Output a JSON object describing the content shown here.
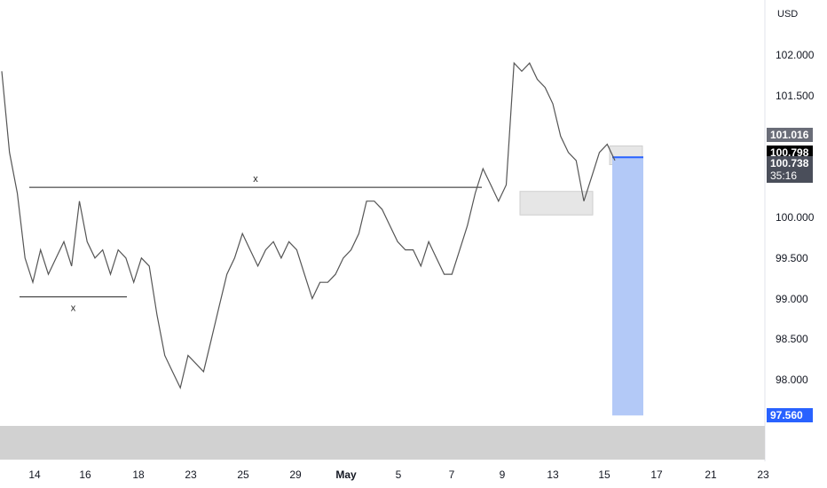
{
  "currency": "USD",
  "chart_data": {
    "type": "line",
    "title": "",
    "ylim": [
      97.2,
      102.3
    ],
    "y_ticks": [
      "102.000",
      "101.500",
      "100.000",
      "99.500",
      "99.000",
      "98.500",
      "98.000"
    ],
    "x_tick_labels": [
      "14",
      "16",
      "18",
      "23",
      "25",
      "29",
      "May",
      "5",
      "7",
      "9",
      "13",
      "15",
      "17",
      "21",
      "23"
    ],
    "series": [
      {
        "values": [
          101.8,
          100.8,
          100.3,
          99.5,
          99.2,
          99.6,
          99.3,
          99.5,
          99.7,
          99.4,
          100.2,
          99.7,
          99.5,
          99.6,
          99.3,
          99.6,
          99.5,
          99.2,
          99.5,
          99.4,
          98.8,
          98.3,
          98.1,
          97.9,
          98.3,
          98.2,
          98.1,
          98.5,
          98.9,
          99.3,
          99.5,
          99.8,
          99.6,
          99.4,
          99.6,
          99.7,
          99.5,
          99.7,
          99.6,
          99.3,
          99.0,
          99.2,
          99.2,
          99.3,
          99.5,
          99.6,
          99.8,
          100.2,
          100.2,
          100.1,
          99.9,
          99.7,
          99.6,
          99.6,
          99.4,
          99.7,
          99.5,
          99.3,
          99.3,
          99.6,
          99.9,
          100.3,
          100.6,
          100.4,
          100.2,
          100.4,
          101.9,
          101.8,
          101.9,
          101.7,
          101.6,
          101.4,
          101.0,
          100.8,
          100.7,
          100.2,
          100.5,
          100.8,
          100.9,
          100.7
        ]
      }
    ],
    "horizontal_markers": [
      {
        "label": "x",
        "value": 99.02
      },
      {
        "label": "x",
        "value": 100.37
      }
    ],
    "zones": [
      {
        "from": 100.03,
        "to": 100.32
      },
      {
        "from": 100.65,
        "to": 100.88
      }
    ],
    "target_box": {
      "from": 97.56,
      "to": 100.74
    },
    "price_tags": [
      {
        "label": "101.016",
        "value": 101.016
      },
      {
        "label": "100.798",
        "value": 100.798
      },
      {
        "label": "100.738",
        "value": 100.738,
        "sub": "35:16"
      },
      {
        "label": "97.560",
        "value": 97.56
      }
    ]
  }
}
